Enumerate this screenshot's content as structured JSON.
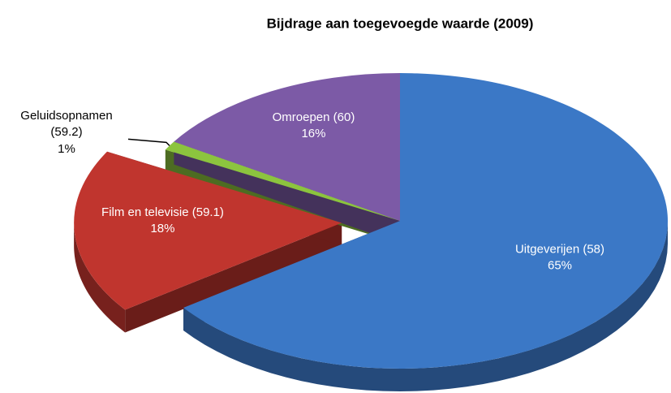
{
  "chart_data": {
    "type": "pie",
    "title": "Bijdrage aan toegevoegde waarde (2009)",
    "categories": [
      "Uitgeverijen (58)",
      "Film en televisie (59.1)",
      "Geluidsopnamen (59.2)",
      "Omroepen (60)"
    ],
    "values": [
      65,
      18,
      1,
      16
    ],
    "value_labels": [
      "65%",
      "18%",
      "1%",
      "16%"
    ],
    "colors": [
      "#3b78c6",
      "#c0352e",
      "#8cc43e",
      "#7c5aa6"
    ]
  }
}
